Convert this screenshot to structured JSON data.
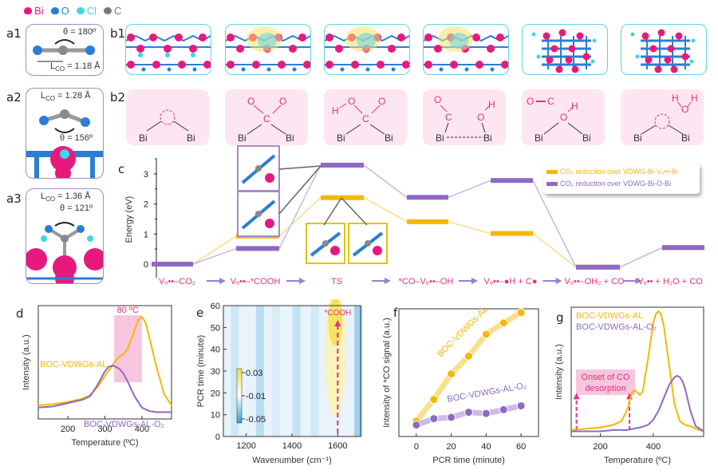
{
  "atom_legend": [
    {
      "label": "Bi",
      "color": "#e8197d"
    },
    {
      "label": "O",
      "color": "#2a7fd4"
    },
    {
      "label": "Cl",
      "color": "#3fd6e6"
    },
    {
      "label": "C",
      "color": "#777777"
    }
  ],
  "panel_labels": {
    "a1": "a1",
    "a2": "a2",
    "a3": "a3",
    "b1": "b1",
    "b2": "b2",
    "c": "c",
    "d": "d",
    "e": "e",
    "f": "f",
    "g": "g"
  },
  "panel_a": [
    {
      "id": "a1",
      "theta": "θ = 180º",
      "lco": "L",
      "lco_sub": "CO",
      "lco_val": " = 1.18 Å"
    },
    {
      "id": "a2",
      "theta": "θ = 156º",
      "lco": "L",
      "lco_sub": "CO",
      "lco_val": " = 1.28 Å"
    },
    {
      "id": "a3",
      "theta": "θ = 121º",
      "lco": "L",
      "lco_sub": "CO",
      "lco_val": " = 1.36 Å"
    }
  ],
  "panel_b2": {
    "bi_label": "Bi",
    "atoms": {
      "O": "O",
      "C": "C",
      "H": "H"
    }
  },
  "colors": {
    "vdwg_bi_vo_bi": "#f5b800",
    "vdwg_bi_o_bi": "#8e68c4",
    "accent_pink": "#e0337f",
    "box_purple": "#a58bc8",
    "box_cyan": "#5fd3e6",
    "box_yellow": "#e6c200"
  },
  "chart_data": [
    {
      "id": "c",
      "type": "line",
      "title": "",
      "xlabel": "",
      "ylabel": "Energy (eV)",
      "ylim": [
        -0.3,
        3.5
      ],
      "yticks": [
        0,
        1,
        2,
        3
      ],
      "categories": [
        "Vₒ••–CO₂",
        "Vₒ••–*COOH",
        "TS",
        "*CO–Vₒ••–OH",
        "Vₒ••–●H + C●",
        "Vₒ••–OH₂ + CO",
        "Vₒ•• + H₂O + CO"
      ],
      "series": [
        {
          "name": "CO₂ reduction over VDWG-Bi-Vₒ••-Bi",
          "values": [
            0,
            0.93,
            2.21,
            1.41,
            1.02,
            -0.1,
            0.55
          ]
        },
        {
          "name": "CO₂ reduction over VDWG-Bi-O-Bi",
          "values": [
            0,
            0.52,
            3.29,
            2.22,
            2.78,
            -0.1,
            0.55
          ]
        }
      ],
      "legend_position": "top-right"
    },
    {
      "id": "d",
      "type": "line",
      "xlabel": "Temperature (ºC)",
      "ylabel": "Intensity (a.u.)",
      "xlim": [
        120,
        480
      ],
      "xticks": [
        200,
        300,
        400
      ],
      "annotation": "80 ºC",
      "shaded_range": [
        325,
        400
      ],
      "series": [
        {
          "name": "BOC-VDWGs-AL",
          "x": [
            120,
            160,
            200,
            240,
            260,
            280,
            300,
            320,
            330,
            340,
            350,
            360,
            380,
            390,
            400,
            410,
            420,
            440,
            460,
            480
          ],
          "y": [
            0.12,
            0.13,
            0.15,
            0.18,
            0.21,
            0.28,
            0.38,
            0.47,
            0.52,
            0.55,
            0.57,
            0.61,
            0.78,
            0.87,
            0.9,
            0.85,
            0.72,
            0.45,
            0.22,
            0.12
          ]
        },
        {
          "name": "BOC-VDWGs-AL-O₂",
          "x": [
            120,
            160,
            200,
            240,
            260,
            280,
            300,
            310,
            320,
            330,
            340,
            350,
            360,
            380,
            400,
            420,
            440,
            460,
            480
          ],
          "y": [
            0.1,
            0.11,
            0.14,
            0.17,
            0.2,
            0.3,
            0.42,
            0.46,
            0.47,
            0.46,
            0.44,
            0.4,
            0.34,
            0.2,
            0.1,
            0.07,
            0.06,
            0.06,
            0.06
          ]
        }
      ]
    },
    {
      "id": "e",
      "type": "heatmap",
      "xlabel": "Wavenumber (cm⁻¹)",
      "ylabel": "PCR time (minute)",
      "xlim": [
        1100,
        1700
      ],
      "ylim": [
        0,
        60
      ],
      "xticks": [
        1200,
        1400,
        1600
      ],
      "yticks": [
        0,
        10,
        20,
        30,
        40,
        50,
        60
      ],
      "colorbar_ticks": [
        "0.03",
        "-0.01",
        "-0.05"
      ],
      "annotation": "*COOH",
      "annotation_x": 1600
    },
    {
      "id": "f",
      "type": "line",
      "xlabel": "PCR time (minute)",
      "ylabel": "Intensity of *CO signal (a.u.)",
      "xlim": [
        -10,
        70
      ],
      "xticks": [
        0,
        20,
        40,
        60
      ],
      "series": [
        {
          "name": "BOC-VDWGs-AL",
          "x": [
            0,
            10,
            20,
            30,
            40,
            50,
            60
          ],
          "y": [
            0.12,
            0.29,
            0.49,
            0.63,
            0.8,
            0.89,
            0.97
          ]
        },
        {
          "name": "BOC-VDWGs-AL-O₂",
          "x": [
            0,
            10,
            20,
            30,
            40,
            50,
            60
          ],
          "y": [
            0.09,
            0.14,
            0.15,
            0.19,
            0.18,
            0.21,
            0.24
          ]
        }
      ]
    },
    {
      "id": "g",
      "type": "line",
      "xlabel": "Temperature (ºC)",
      "ylabel": "Intensity (a.u.)",
      "xlim": [
        90,
        590
      ],
      "xticks": [
        200,
        400
      ],
      "annotation": "Onset of CO desorption",
      "annotation_arrows_x": [
        110,
        310
      ],
      "series": [
        {
          "name": "BOC-VDWGs-AL",
          "x": [
            90,
            150,
            200,
            250,
            280,
            300,
            320,
            330,
            340,
            350,
            360,
            380,
            400,
            410,
            420,
            430,
            440,
            460,
            480,
            500,
            520,
            540,
            560,
            590
          ],
          "y": [
            0.05,
            0.06,
            0.07,
            0.09,
            0.12,
            0.2,
            0.34,
            0.36,
            0.34,
            0.32,
            0.35,
            0.6,
            0.88,
            0.95,
            0.97,
            0.94,
            0.85,
            0.55,
            0.25,
            0.12,
            0.09,
            0.08,
            0.06,
            0.04
          ]
        },
        {
          "name": "BOC-VDWGs-AL-O₂",
          "x": [
            90,
            150,
            200,
            250,
            300,
            350,
            380,
            400,
            420,
            440,
            460,
            480,
            490,
            500,
            510,
            520,
            540,
            560,
            590
          ],
          "y": [
            0.04,
            0.04,
            0.04,
            0.05,
            0.05,
            0.07,
            0.09,
            0.13,
            0.2,
            0.3,
            0.4,
            0.46,
            0.47,
            0.46,
            0.43,
            0.37,
            0.2,
            0.08,
            0.04
          ]
        }
      ]
    }
  ]
}
